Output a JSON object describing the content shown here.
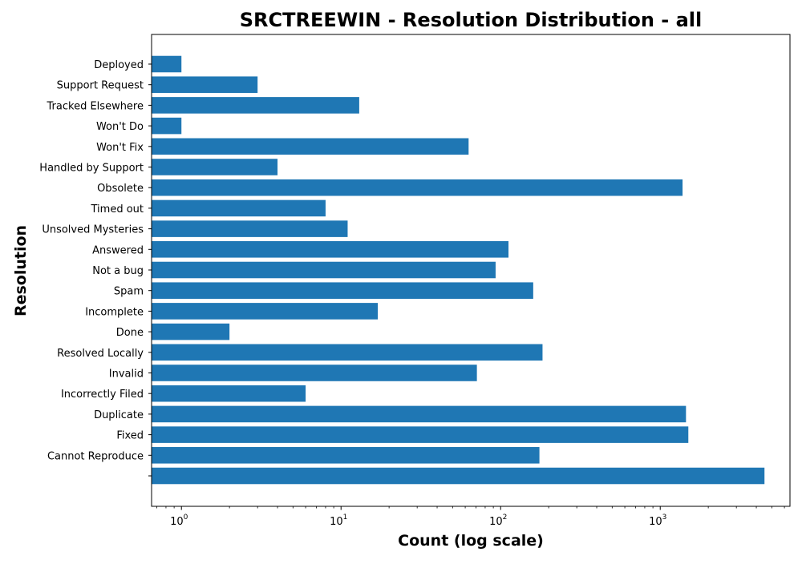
{
  "chart_data": {
    "type": "bar",
    "orientation": "horizontal",
    "title": "SRCTREEWIN - Resolution Distribution - all",
    "xlabel": "Count (log scale)",
    "ylabel": "Resolution",
    "x_scale": "log",
    "xlim": [
      0.65,
      6500
    ],
    "x_ticks": [
      {
        "value": 1,
        "base": "10",
        "exp": "0"
      },
      {
        "value": 10,
        "base": "10",
        "exp": "1"
      },
      {
        "value": 100,
        "base": "10",
        "exp": "2"
      },
      {
        "value": 1000,
        "base": "10",
        "exp": "3"
      }
    ],
    "grid": false,
    "bar_color": "#1f77b4",
    "categories": [
      "",
      "Cannot Reproduce",
      "Fixed",
      "Duplicate",
      "Incorrectly Filed",
      "Invalid",
      "Resolved Locally",
      "Done",
      "Incomplete",
      "Spam",
      "Not a bug",
      "Answered",
      "Unsolved Mysteries",
      "Timed out",
      "Obsolete",
      "Handled by Support",
      "Won't Fix",
      "Won't Do",
      "Tracked Elsewhere",
      "Support Request",
      "Deployed"
    ],
    "values": [
      4500,
      175,
      1500,
      1450,
      6,
      71,
      183,
      2,
      17,
      160,
      93,
      112,
      11,
      8,
      1380,
      4,
      63,
      1,
      13,
      3,
      1
    ]
  }
}
